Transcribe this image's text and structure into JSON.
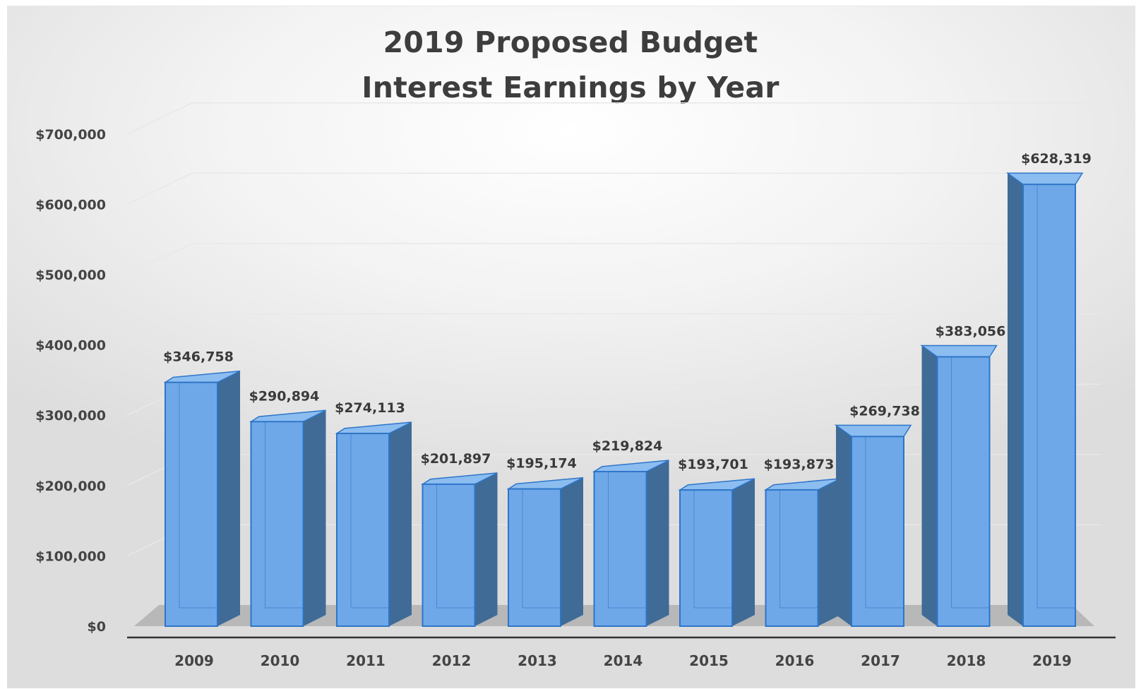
{
  "chart_data": {
    "type": "bar",
    "title": [
      "2019 Proposed Budget",
      "Interest Earnings by Year"
    ],
    "categories": [
      "2009",
      "2010",
      "2011",
      "2012",
      "2013",
      "2014",
      "2015",
      "2016",
      "2017",
      "2018",
      "2019"
    ],
    "values": [
      346758,
      290894,
      274113,
      201897,
      195174,
      219824,
      193701,
      193873,
      269738,
      383056,
      628319
    ],
    "data_labels": [
      "$346,758",
      "$290,894",
      "$274,113",
      "$201,897",
      "$195,174",
      "$219,824",
      "$193,701",
      "$193,873",
      "$269,738",
      "$383,056",
      "$628,319"
    ],
    "y_ticks": [
      "$0",
      "$100,000",
      "$200,000",
      "$300,000",
      "$400,000",
      "$500,000",
      "$600,000",
      "$700,000"
    ],
    "ylim": [
      0,
      700000
    ],
    "xlabel": "",
    "ylabel": "",
    "grid": true,
    "legend": "none",
    "style": "3d-column",
    "colors": {
      "bar_front": "#6fa8e8",
      "bar_front_edge": "#2e75c9",
      "bar_side": "#3f6b96",
      "bar_top": "#8cbdf0",
      "floor": "#b8b8b8",
      "grid": "#e8e8e8"
    }
  }
}
